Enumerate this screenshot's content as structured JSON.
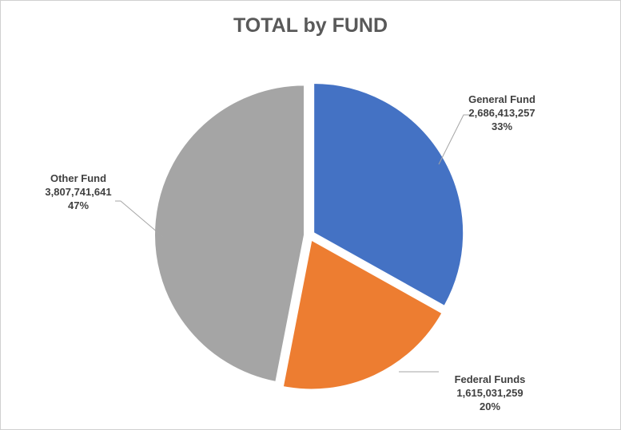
{
  "chart_data": {
    "type": "pie",
    "title": "TOTAL by FUND",
    "slices": [
      {
        "label": "General Fund",
        "value": 2686413257,
        "value_text": "2,686,413,257",
        "percent_text": "33%",
        "color": "#4472C4"
      },
      {
        "label": "Federal Funds",
        "value": 1615031259,
        "value_text": "1,615,031,259",
        "percent_text": "20%",
        "color": "#ED7D31"
      },
      {
        "label": "Other Fund",
        "value": 3807741641,
        "value_text": "3,807,741,641",
        "percent_text": "47%",
        "color": "#A5A5A5"
      }
    ],
    "legend": "none"
  }
}
